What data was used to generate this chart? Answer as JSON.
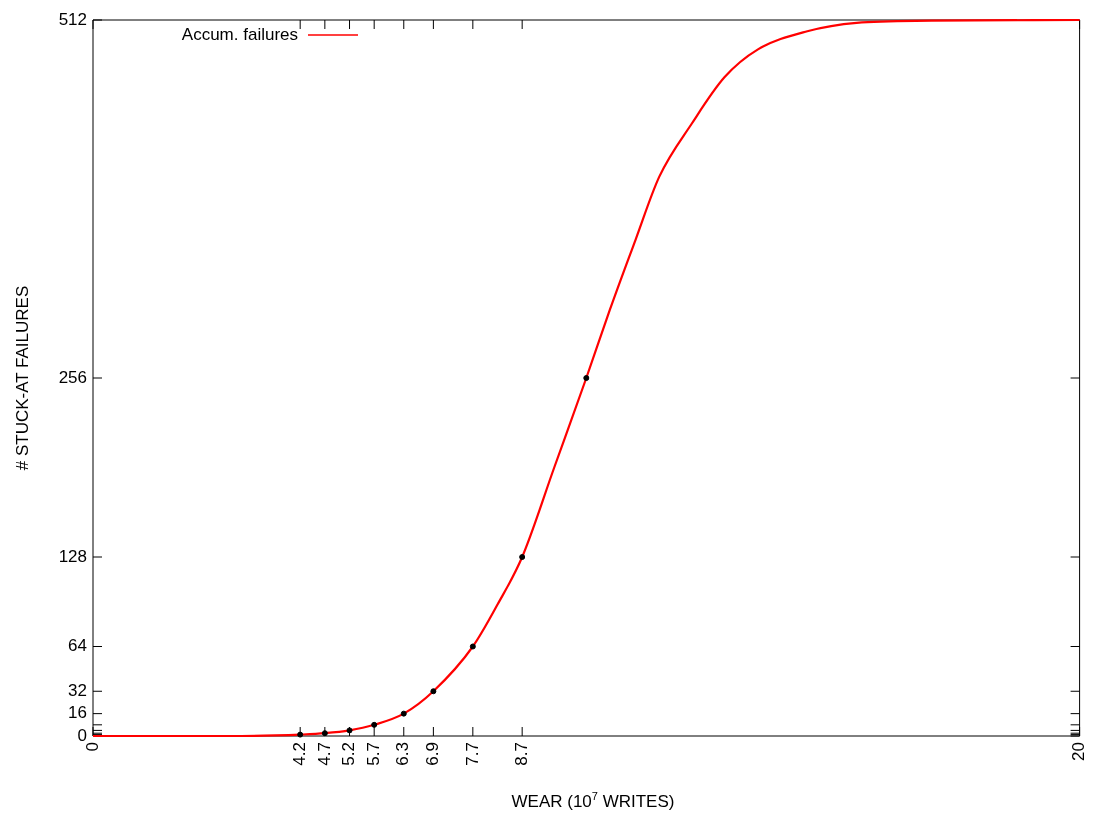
{
  "chart_data": {
    "type": "line",
    "xlabel": "WEAR (10$^{7}$ WRITES)",
    "ylabel": "# STUCK-AT FAILURES",
    "xlim": [
      0,
      20
    ],
    "xticks": [
      0,
      4.2,
      4.7,
      5.2,
      5.7,
      6.3,
      6.9,
      7.7,
      8.7,
      20
    ],
    "ylim": [
      0,
      512
    ],
    "yticks": [
      0,
      {
        "value": 1,
        "label": null
      },
      {
        "value": 2,
        "label": null
      },
      {
        "value": 4,
        "label": null
      },
      {
        "value": 8,
        "label": null
      },
      16,
      32,
      64,
      128,
      256,
      512
    ],
    "grid": false,
    "legend": "top left",
    "series": [
      {
        "name": "Accum. failures",
        "type": "line",
        "marker": "none",
        "line_style": "solid",
        "color": "#ff0000",
        "x": [
          0,
          2,
          3,
          3.7,
          4.2,
          4.7,
          5.2,
          5.7,
          6.3,
          6.9,
          7.7,
          8.2,
          8.7,
          9.35,
          10,
          10.48,
          11,
          11.48,
          12.14,
          12.8,
          13.48,
          14.48,
          15.48,
          17,
          20
        ],
        "values": [
          0,
          0,
          0,
          0.4,
          1,
          2,
          4,
          8,
          16,
          32,
          64,
          94,
          128,
          192,
          256,
          305,
          355,
          400,
          438,
          471,
          491,
          504,
          510,
          511.5,
          512
        ]
      },
      {
        "type": "scatter",
        "marker": "circle",
        "color": "#000000",
        "x": [
          4.2,
          4.7,
          5.2,
          5.7,
          6.3,
          6.9,
          7.7,
          8.7,
          10
        ],
        "values": [
          1,
          2,
          4,
          8,
          16,
          32,
          64,
          128,
          256
        ]
      }
    ]
  }
}
